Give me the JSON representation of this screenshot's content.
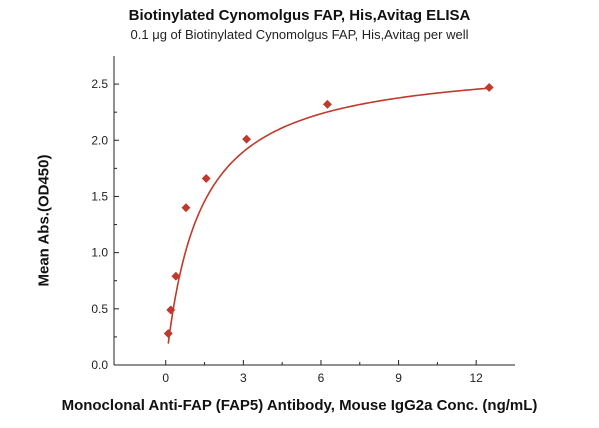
{
  "chart_data": {
    "type": "scatter",
    "title": "Biotinylated Cynomolgus FAP, His,Avitag ELISA",
    "subtitle": "0.1 μg of Biotinylated Cynomolgus FAP, His,Avitag per well",
    "xlabel": "Monoclonal Anti-FAP (FAP5) Antibody, Mouse IgG2a Conc. (ng/mL)",
    "ylabel": "Mean Abs.(OD450)",
    "xlim": [
      -2.0,
      13.5
    ],
    "ylim": [
      0.0,
      2.75
    ],
    "xticks": [
      0,
      3,
      6,
      9,
      12
    ],
    "xtick_labels": [
      "0",
      "3",
      "6",
      "9",
      "12"
    ],
    "yticks": [
      0.0,
      0.5,
      1.0,
      1.5,
      2.0,
      2.5
    ],
    "ytick_labels": [
      "0.0",
      "0.5",
      "1.0",
      "1.5",
      "2.0",
      "2.5"
    ],
    "grid": false,
    "color": "#c0392b",
    "series": [
      {
        "x": [
          0.098,
          0.195,
          0.391,
          0.781,
          1.563,
          3.125,
          6.25,
          12.5
        ],
        "y": [
          0.28,
          0.49,
          0.79,
          1.4,
          1.66,
          2.01,
          2.32,
          2.47
        ]
      }
    ],
    "fit": {
      "type": "hyperbolic",
      "ymax": 2.72,
      "kd": 1.3
    }
  }
}
